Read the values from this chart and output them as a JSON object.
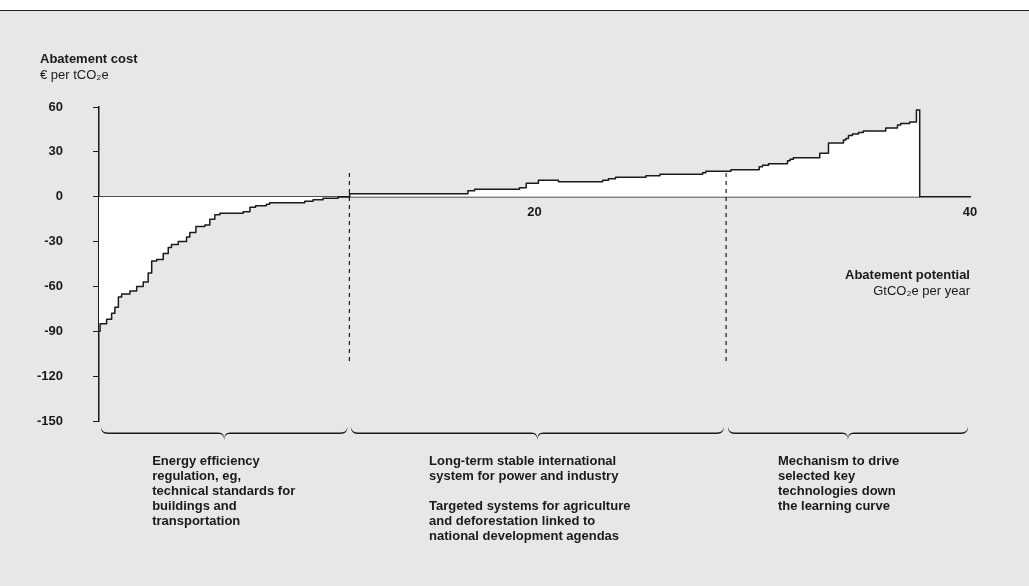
{
  "chart_data": {
    "type": "area",
    "ylabel": "Abatement cost\n€ per tCO₂e",
    "xlabel": "Abatement potential\nGtCO₂e per year",
    "x": [
      0,
      0.05,
      0.05,
      0.35,
      0.35,
      0.58,
      0.58,
      0.73,
      0.73,
      0.89,
      0.89,
      1.04,
      1.04,
      1.42,
      1.42,
      1.73,
      1.73,
      2.03,
      2.03,
      2.26,
      2.26,
      2.42,
      2.42,
      2.65,
      2.65,
      2.95,
      2.95,
      3.18,
      3.18,
      3.33,
      3.33,
      3.64,
      3.64,
      4.02,
      4.02,
      4.17,
      4.17,
      4.45,
      4.45,
      4.86,
      4.86,
      5.09,
      5.09,
      5.32,
      5.32,
      5.55,
      5.55,
      6.62,
      6.62,
      6.93,
      6.93,
      7.19,
      7.19,
      7.69,
      7.69,
      7.84,
      7.84,
      9.45,
      9.45,
      9.83,
      9.83,
      10.29,
      10.29,
      10.98,
      10.98,
      11.51,
      11.51,
      16.94,
      16.94,
      17.25,
      17.25,
      19.31,
      19.31,
      19.62,
      19.62,
      20.18,
      20.18,
      21.1,
      21.1,
      23.13,
      23.13,
      23.4,
      23.4,
      23.72,
      23.72,
      25.12,
      25.12,
      25.76,
      25.76,
      27.72,
      27.72,
      27.87,
      27.87,
      29.02,
      29.02,
      30.32,
      30.32,
      30.47,
      30.47,
      30.75,
      30.75,
      31.62,
      31.62,
      31.74,
      31.74,
      31.89,
      31.89,
      33.1,
      33.1,
      33.5,
      33.5,
      34.19,
      34.19,
      34.3,
      34.3,
      34.42,
      34.42,
      34.6,
      34.6,
      34.88,
      34.88,
      35.1,
      35.1,
      36.13,
      36.13,
      36.67,
      36.67,
      36.82,
      36.82,
      37.23,
      37.23,
      37.54,
      37.54,
      37.69,
      37.69
    ],
    "values": [
      -90,
      -90,
      -85,
      -85,
      -82,
      -82,
      -78,
      -78,
      -74,
      -74,
      -67,
      -67,
      -65,
      -65,
      -63,
      -63,
      -60,
      -60,
      -57,
      -57,
      -51,
      -51,
      -43,
      -43,
      -42,
      -42,
      -38,
      -38,
      -34,
      -34,
      -32,
      -32,
      -30,
      -30,
      -27,
      -27,
      -24,
      -24,
      -20,
      -20,
      -19,
      -19,
      -15,
      -15,
      -12,
      -12,
      -11,
      -11,
      -10,
      -10,
      -7,
      -7,
      -6,
      -6,
      -5,
      -5,
      -4,
      -4,
      -3,
      -3,
      -2,
      -2,
      -1,
      -1,
      0,
      0,
      2,
      2,
      4,
      4,
      5,
      5,
      6,
      6,
      9,
      9,
      11,
      11,
      10,
      10,
      11,
      11,
      12,
      12,
      13,
      13,
      14,
      14,
      15,
      15,
      16,
      16,
      17,
      17,
      18,
      18,
      20,
      20,
      21,
      21,
      22,
      22,
      24,
      24,
      25,
      25,
      26,
      26,
      29,
      29,
      36,
      36,
      38,
      38,
      39,
      39,
      41,
      41,
      42,
      42,
      43,
      43,
      44,
      44,
      46,
      46,
      48,
      48,
      49,
      49,
      50,
      50,
      58,
      58,
      0
    ],
    "color": "#ffffff",
    "xlim": [
      0,
      40
    ],
    "xticks": [
      {
        "value": 0,
        "label": null
      },
      20,
      40
    ],
    "ylim": [
      -150,
      60
    ],
    "yticks": [
      -150,
      -120,
      -90,
      -60,
      -30,
      0,
      30,
      60
    ],
    "ref_lines": [
      {
        "axis": "x",
        "value": 11.5,
        "line_style": "dashed"
      },
      {
        "axis": "x",
        "value": 28.8,
        "line_style": "dashed"
      }
    ],
    "annotations": [
      "Energy efficiency regulation, eg, technical standards for buildings and transportation",
      "Long-term stable international system for power and industry\nTargeted systems for agriculture and deforestation linked to national development agendas",
      "Mechanism to drive selected key technologies down the learning curve"
    ]
  }
}
